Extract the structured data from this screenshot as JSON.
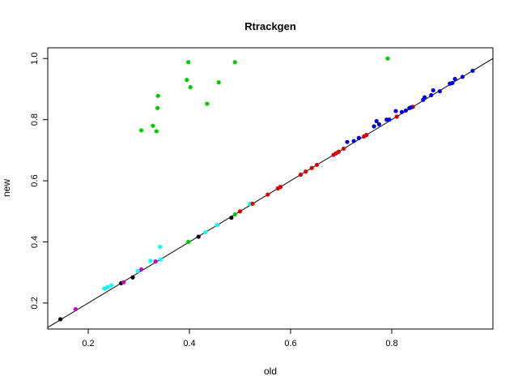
{
  "chart_data": {
    "type": "scatter",
    "title": "Rtrackgen",
    "xlabel": "old",
    "ylabel": "new",
    "xlim": [
      0.12,
      1.0
    ],
    "ylim": [
      0.115,
      1.035
    ],
    "x_ticks": [
      0.2,
      0.4,
      0.6,
      0.8
    ],
    "x_tick_labels": [
      "0.2",
      "0.4",
      "0.6",
      "0.8"
    ],
    "y_ticks": [
      0.2,
      0.4,
      0.6,
      0.8,
      1.0
    ],
    "y_tick_labels": [
      "0.2",
      "0.4",
      "0.6",
      "0.8",
      "1.0"
    ],
    "grid": false,
    "legend": "none",
    "reference_line": {
      "intercept": 0,
      "slope": 1,
      "color": "#000000"
    },
    "series": [
      {
        "color": "#000000",
        "points": [
          [
            0.145,
            0.147
          ],
          [
            0.265,
            0.265
          ],
          [
            0.288,
            0.284
          ],
          [
            0.418,
            0.417
          ],
          [
            0.483,
            0.479
          ]
        ]
      },
      {
        "color": "#cc00cc",
        "points": [
          [
            0.175,
            0.18
          ],
          [
            0.27,
            0.268
          ],
          [
            0.305,
            0.31
          ],
          [
            0.333,
            0.336
          ]
        ]
      },
      {
        "color": "#00ffff",
        "points": [
          [
            0.232,
            0.247
          ],
          [
            0.238,
            0.252
          ],
          [
            0.246,
            0.258
          ],
          [
            0.298,
            0.305
          ],
          [
            0.323,
            0.338
          ],
          [
            0.343,
            0.343
          ],
          [
            0.342,
            0.384
          ],
          [
            0.432,
            0.432
          ],
          [
            0.455,
            0.455
          ],
          [
            0.52,
            0.525
          ]
        ]
      },
      {
        "color": "#00cc00",
        "points": [
          [
            0.398,
            0.4
          ],
          [
            0.49,
            0.49
          ],
          [
            0.305,
            0.765
          ],
          [
            0.328,
            0.78
          ],
          [
            0.335,
            0.762
          ],
          [
            0.337,
            0.838
          ],
          [
            0.338,
            0.878
          ],
          [
            0.395,
            0.93
          ],
          [
            0.398,
            0.988
          ],
          [
            0.402,
            0.906
          ],
          [
            0.435,
            0.852
          ],
          [
            0.458,
            0.922
          ],
          [
            0.49,
            0.988
          ],
          [
            0.792,
            1.0
          ]
        ]
      },
      {
        "color": "#dd0000",
        "points": [
          [
            0.5,
            0.5
          ],
          [
            0.525,
            0.525
          ],
          [
            0.555,
            0.555
          ],
          [
            0.575,
            0.575
          ],
          [
            0.58,
            0.58
          ],
          [
            0.62,
            0.62
          ],
          [
            0.63,
            0.63
          ],
          [
            0.642,
            0.642
          ],
          [
            0.652,
            0.652
          ],
          [
            0.685,
            0.685
          ],
          [
            0.69,
            0.69
          ],
          [
            0.695,
            0.695
          ],
          [
            0.705,
            0.705
          ],
          [
            0.745,
            0.745
          ],
          [
            0.75,
            0.75
          ],
          [
            0.81,
            0.81
          ],
          [
            0.842,
            0.842
          ]
        ]
      },
      {
        "color": "#0000dd",
        "points": [
          [
            0.712,
            0.727
          ],
          [
            0.725,
            0.73
          ],
          [
            0.735,
            0.74
          ],
          [
            0.765,
            0.778
          ],
          [
            0.77,
            0.795
          ],
          [
            0.775,
            0.785
          ],
          [
            0.79,
            0.8
          ],
          [
            0.795,
            0.8
          ],
          [
            0.808,
            0.828
          ],
          [
            0.82,
            0.825
          ],
          [
            0.828,
            0.83
          ],
          [
            0.835,
            0.838
          ],
          [
            0.838,
            0.84
          ],
          [
            0.862,
            0.865
          ],
          [
            0.865,
            0.873
          ],
          [
            0.878,
            0.88
          ],
          [
            0.882,
            0.896
          ],
          [
            0.895,
            0.893
          ],
          [
            0.915,
            0.918
          ],
          [
            0.92,
            0.92
          ],
          [
            0.925,
            0.933
          ],
          [
            0.94,
            0.94
          ],
          [
            0.96,
            0.96
          ]
        ]
      }
    ]
  }
}
